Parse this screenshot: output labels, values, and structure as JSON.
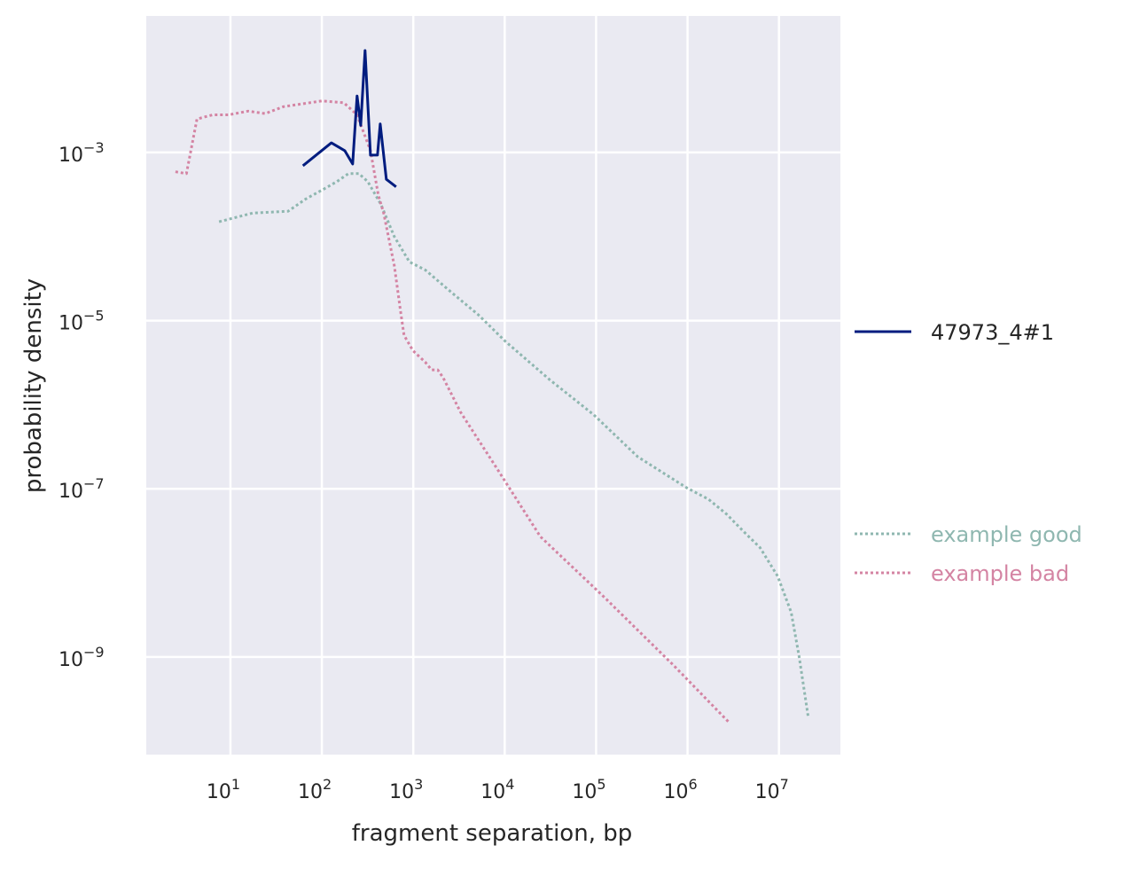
{
  "chart_data": {
    "type": "line",
    "title": "",
    "xlabel": "fragment separation, bp",
    "ylabel": "probability density",
    "xscale": "log",
    "yscale": "log",
    "xlim": [
      1.2,
      47000000
    ],
    "ylim": [
      6.9e-11,
      0.042
    ],
    "grid": true,
    "background": "#eaeaf2",
    "x_ticks": [
      {
        "base": "10",
        "exp": "1",
        "value": 10
      },
      {
        "base": "10",
        "exp": "2",
        "value": 100
      },
      {
        "base": "10",
        "exp": "3",
        "value": 1000
      },
      {
        "base": "10",
        "exp": "4",
        "value": 10000
      },
      {
        "base": "10",
        "exp": "5",
        "value": 100000
      },
      {
        "base": "10",
        "exp": "6",
        "value": 1000000
      },
      {
        "base": "10",
        "exp": "7",
        "value": 10000000
      }
    ],
    "y_ticks": [
      {
        "base": "10",
        "exp": "−3",
        "value": 0.001
      },
      {
        "base": "10",
        "exp": "−5",
        "value": 1e-05
      },
      {
        "base": "10",
        "exp": "−7",
        "value": 1e-07
      },
      {
        "base": "10",
        "exp": "−9",
        "value": 1e-09
      }
    ],
    "legend_placement": "right, outside",
    "series": [
      {
        "name": "47973_4#1",
        "color": "#001c7f",
        "style": "solid",
        "x": [
          62,
          127,
          178,
          217,
          243,
          266,
          297,
          340,
          406,
          435,
          507,
          649
        ],
        "y": [
          0.000695,
          0.0013,
          0.00105,
          0.00073,
          0.0047,
          0.0021,
          0.0163,
          0.00093,
          0.00093,
          0.00218,
          0.00048,
          0.00039
        ]
      },
      {
        "name": "example good",
        "color": "#8fb7b0",
        "style": "dotted",
        "x": [
          7.5,
          17.5,
          42.7,
          66.7,
          111,
          146,
          195,
          254,
          318,
          444,
          620,
          906,
          1355,
          2640,
          5160,
          10100,
          30800,
          94000,
          286000,
          977000,
          1700000,
          2670000,
          4170000,
          6200000,
          9700000,
          13600000,
          16600000,
          20800000
        ],
        "y": [
          0.00015,
          0.00019,
          0.0002,
          0.00028,
          0.00038,
          0.00045,
          0.00056,
          0.00056,
          0.00045,
          0.00024,
          0.0001,
          5e-05,
          4e-05,
          2.15e-05,
          1.17e-05,
          5.7e-06,
          2e-06,
          7.6e-07,
          2.4e-07,
          1.03e-07,
          7.5e-08,
          5e-08,
          3.05e-08,
          2e-08,
          9.1e-09,
          3.4e-09,
          1.02e-09,
          2e-10
        ]
      },
      {
        "name": "example bad",
        "color": "#d484a3",
        "style": "dotted",
        "x": [
          2.5,
          3.3,
          4.3,
          6.4,
          9.6,
          15.6,
          24,
          38,
          100,
          174,
          243,
          340,
          415,
          474,
          620,
          725,
          793,
          990,
          1355,
          1585,
          1850,
          2120,
          3300,
          8070,
          24600,
          117000,
          700000,
          2850000
        ],
        "y": [
          0.00059,
          0.00056,
          0.0025,
          0.0028,
          0.0028,
          0.0031,
          0.0029,
          0.0035,
          0.0041,
          0.0039,
          0.0028,
          0.00105,
          0.00031,
          0.00019,
          4.5e-05,
          1.3e-05,
          6.7e-06,
          4.4e-06,
          3.2e-06,
          2.6e-06,
          2.6e-06,
          2.1e-06,
          8.1e-07,
          1.8e-07,
          2.7e-08,
          5.4e-09,
          8e-10,
          1.66e-10
        ]
      }
    ]
  }
}
